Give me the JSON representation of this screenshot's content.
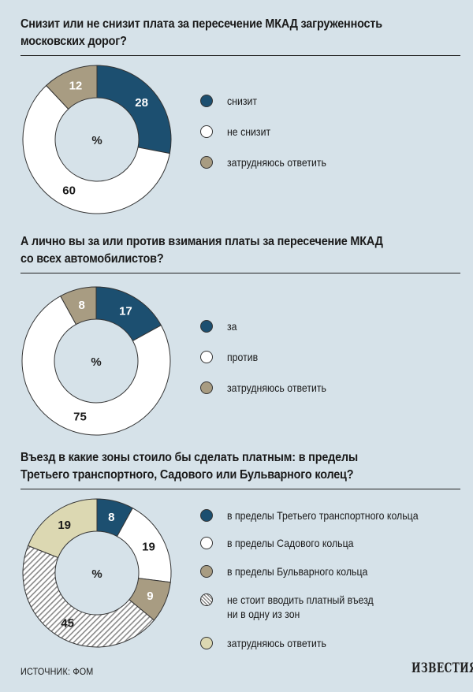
{
  "chart_data": [
    {
      "type": "pie",
      "title": "Снизит или не снизит плата за пересечение МКАД загруженность московских дорог?",
      "center_label": "%",
      "categories": [
        "снизит",
        "не снизит",
        "затрудняюсь ответить"
      ],
      "values": [
        28,
        60,
        12
      ],
      "colors": [
        "#1c4f70",
        "#ffffff",
        "#a89c82"
      ],
      "label_colors": [
        "#ffffff",
        "#1a1a1a",
        "#ffffff"
      ],
      "donut": true
    },
    {
      "type": "pie",
      "title": "А лично вы за или против взимания платы за пересечение МКАД со всех автомобилистов?",
      "center_label": "%",
      "categories": [
        "за",
        "против",
        "затрудняюсь ответить"
      ],
      "values": [
        17,
        75,
        8
      ],
      "colors": [
        "#1c4f70",
        "#ffffff",
        "#a89c82"
      ],
      "label_colors": [
        "#ffffff",
        "#1a1a1a",
        "#ffffff"
      ],
      "donut": true
    },
    {
      "type": "pie",
      "title": "Въезд в какие зоны стоило бы сделать платным: в пределы Третьего транспортного, Садового или Бульварного колец?",
      "center_label": "%",
      "categories": [
        "в пределы Третьего транспортного кольца",
        "в пределы Садового кольца",
        "в пределы Бульварного кольца",
        "не стоит вводить платный въезд ни в одну из зон",
        "затрудняюсь ответить"
      ],
      "legend_lines": [
        [
          "в пределы Третьего транспортного кольца"
        ],
        [
          "в пределы Садового кольца"
        ],
        [
          "в пределы Бульварного кольца"
        ],
        [
          "не стоит вводить платный въезд",
          "ни в одну из зон"
        ],
        [
          "затрудняюсь ответить"
        ]
      ],
      "values": [
        8,
        19,
        9,
        45,
        19
      ],
      "colors": [
        "#1c4f70",
        "#ffffff",
        "#a89c82",
        "hatch",
        "#dcd8b2"
      ],
      "label_colors": [
        "#ffffff",
        "#1a1a1a",
        "#ffffff",
        "#1a1a1a",
        "#1a1a1a"
      ],
      "donut": true
    }
  ],
  "source": "ИСТОЧНИК: ФОМ",
  "logo": "ИЗВЕСТИЯ"
}
